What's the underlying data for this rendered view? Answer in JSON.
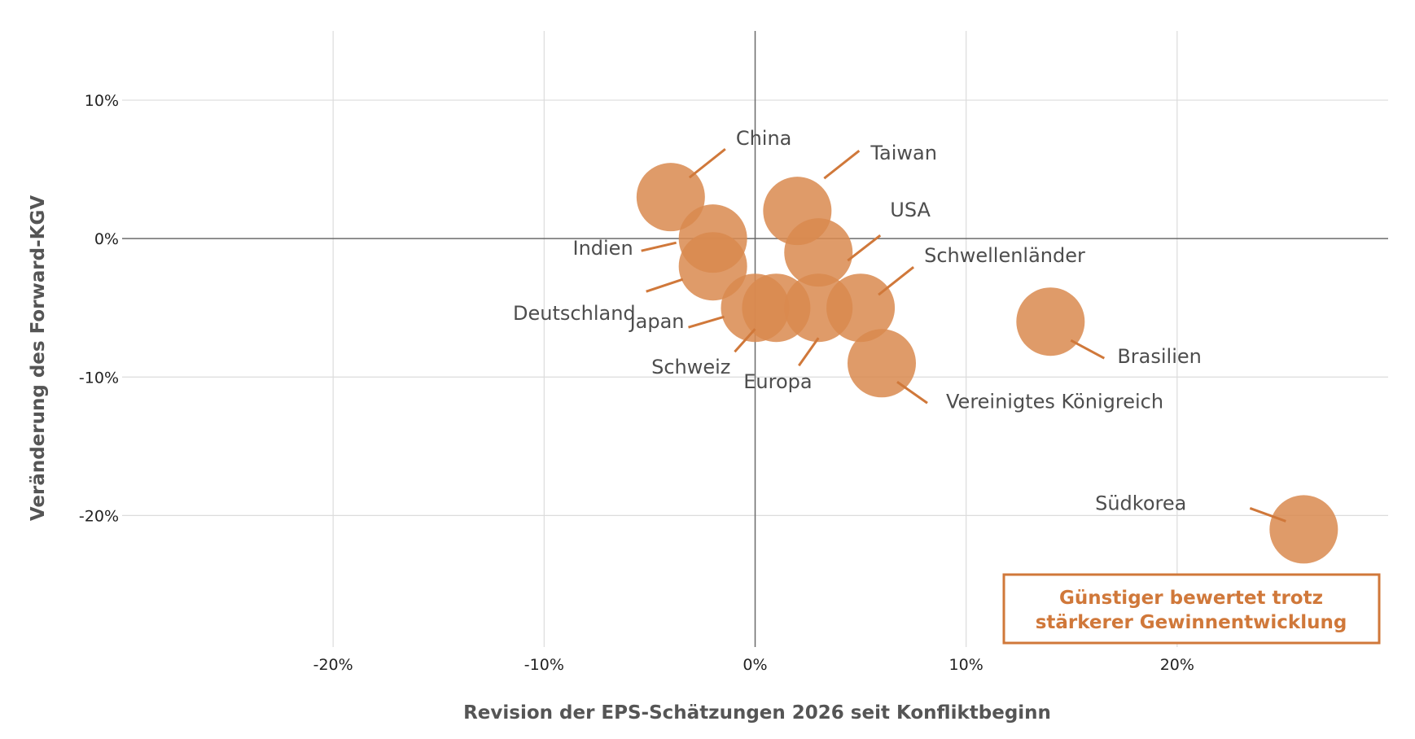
{
  "chart_data": {
    "type": "scatter",
    "xlabel": "Revision der EPS-Schätzungen 2026 seit Konfliktbeginn",
    "ylabel": "Veränderung des Forward-KGV",
    "xlim": [
      -0.3,
      0.3
    ],
    "ylim": [
      -0.295,
      0.15
    ],
    "x_ticks": [
      -0.2,
      -0.1,
      0,
      0.1,
      0.2
    ],
    "x_tick_labels": [
      "-20%",
      "-10%",
      "0%",
      "10%",
      "20%"
    ],
    "y_ticks": [
      0.1,
      0,
      -0.1,
      -0.2
    ],
    "y_tick_labels": [
      "10%",
      "0%",
      "-10%",
      "-20%"
    ],
    "grid": true,
    "marker_color": "#d98a4f",
    "label_color": "#d0783a",
    "points": [
      {
        "label": "China",
        "x": -0.04,
        "y": 0.03
      },
      {
        "label": "Indien",
        "x": -0.02,
        "y": 0.0
      },
      {
        "label": "Deutschland",
        "x": -0.02,
        "y": -0.02
      },
      {
        "label": "Taiwan",
        "x": 0.02,
        "y": 0.02
      },
      {
        "label": "USA",
        "x": 0.03,
        "y": -0.01
      },
      {
        "label": "Japan",
        "x": 0.0,
        "y": -0.05
      },
      {
        "label": "Schweiz",
        "x": 0.01,
        "y": -0.05
      },
      {
        "label": "Europa",
        "x": 0.03,
        "y": -0.05
      },
      {
        "label": "Schwellenländer",
        "x": 0.05,
        "y": -0.05
      },
      {
        "label": "Vereinigtes Königreich",
        "x": 0.06,
        "y": -0.09
      },
      {
        "label": "Brasilien",
        "x": 0.14,
        "y": -0.06
      },
      {
        "label": "Südkorea",
        "x": 0.26,
        "y": -0.21
      }
    ],
    "annotation": [
      "Günstiger bewertet trotz",
      "stärkerer Gewinnentwicklung"
    ]
  }
}
